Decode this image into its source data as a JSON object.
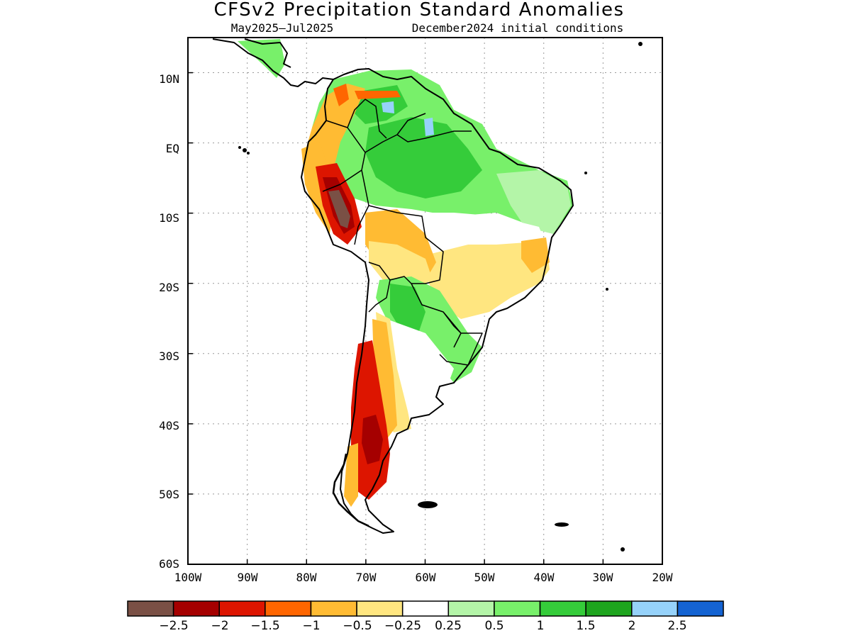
{
  "title": "CFSv2 Precipitation Standard Anomalies",
  "subtitle_left": "May2025–Jul2025",
  "subtitle_right": "December2024 initial conditions",
  "map": {
    "region": "South America",
    "lon_range": [
      -100,
      -20
    ],
    "lat_range": [
      -60,
      15
    ],
    "grid": true,
    "x_tick_labels": [
      "100W",
      "90W",
      "80W",
      "70W",
      "60W",
      "50W",
      "40W",
      "30W",
      "20W"
    ],
    "y_tick_labels": [
      "10N",
      "EQ",
      "10S",
      "20S",
      "30S",
      "40S",
      "50S",
      "60S"
    ],
    "y_tick_values": [
      10,
      0,
      -10,
      -20,
      -30,
      -40,
      -50,
      -60
    ]
  },
  "colorbar": {
    "colors": [
      "#7a5045",
      "#a50000",
      "#dd1500",
      "#ff6600",
      "#ffbb33",
      "#ffe680",
      "#ffffff",
      "#b4f5a8",
      "#78f06a",
      "#35cc3a",
      "#1ea51e",
      "#96d2fa",
      "#1463d2"
    ],
    "labels": [
      "−2.5",
      "−2",
      "−1.5",
      "−1",
      "−0.5",
      "−0.25",
      "0.25",
      "0.5",
      "1",
      "1.5",
      "2",
      "2.5"
    ]
  },
  "anomaly_regions": [
    {
      "name": "northwest-south-america-green",
      "value": 1.2
    },
    {
      "name": "amazon-basin-green",
      "value": 1.3
    },
    {
      "name": "northeast-brazil-light-green",
      "value": 0.6
    },
    {
      "name": "central-brazil-yellow",
      "value": -0.4
    },
    {
      "name": "andes-peru-brown",
      "value": -2.6
    },
    {
      "name": "bolivia-orange",
      "value": -0.8
    },
    {
      "name": "paraguay-green",
      "value": 1.1
    },
    {
      "name": "southern-brazil-green",
      "value": 0.8
    },
    {
      "name": "central-argentina-white",
      "value": 0.0
    },
    {
      "name": "chile-argentina-andes-red",
      "value": -1.8
    },
    {
      "name": "patagonia-red",
      "value": -2.0
    },
    {
      "name": "guyana-light-blue",
      "value": 2.1
    }
  ]
}
